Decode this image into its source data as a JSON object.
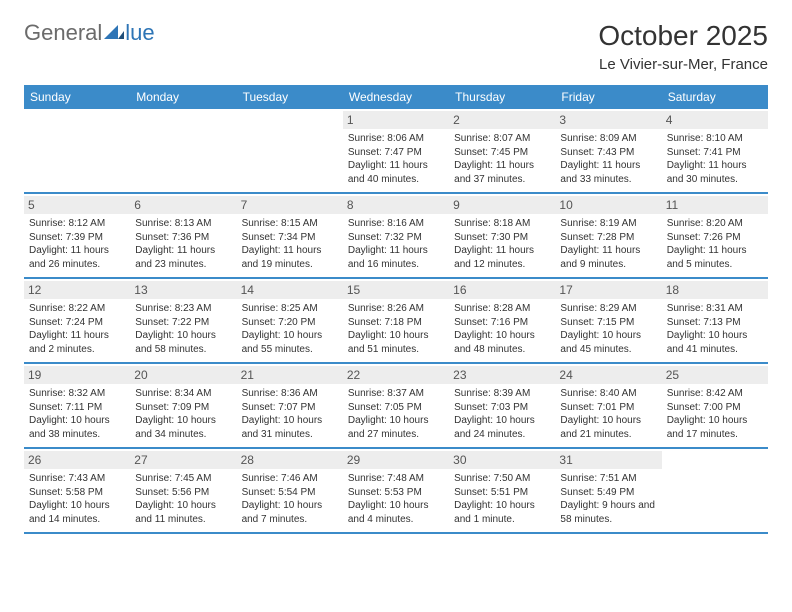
{
  "logo": {
    "text_left": "General",
    "text_right": "lue"
  },
  "title": "October 2025",
  "location": "Le Vivier-sur-Mer, France",
  "colors": {
    "header_bg": "#3b8bc9",
    "header_text": "#ffffff",
    "daynum_bg": "#ededed",
    "border": "#3b8bc9",
    "logo_gray": "#6b6b6b",
    "logo_blue": "#2e75b6"
  },
  "day_names": [
    "Sunday",
    "Monday",
    "Tuesday",
    "Wednesday",
    "Thursday",
    "Friday",
    "Saturday"
  ],
  "weeks": [
    [
      {
        "n": "",
        "sr": "",
        "ss": "",
        "dl": ""
      },
      {
        "n": "",
        "sr": "",
        "ss": "",
        "dl": ""
      },
      {
        "n": "",
        "sr": "",
        "ss": "",
        "dl": ""
      },
      {
        "n": "1",
        "sr": "Sunrise: 8:06 AM",
        "ss": "Sunset: 7:47 PM",
        "dl": "Daylight: 11 hours and 40 minutes."
      },
      {
        "n": "2",
        "sr": "Sunrise: 8:07 AM",
        "ss": "Sunset: 7:45 PM",
        "dl": "Daylight: 11 hours and 37 minutes."
      },
      {
        "n": "3",
        "sr": "Sunrise: 8:09 AM",
        "ss": "Sunset: 7:43 PM",
        "dl": "Daylight: 11 hours and 33 minutes."
      },
      {
        "n": "4",
        "sr": "Sunrise: 8:10 AM",
        "ss": "Sunset: 7:41 PM",
        "dl": "Daylight: 11 hours and 30 minutes."
      }
    ],
    [
      {
        "n": "5",
        "sr": "Sunrise: 8:12 AM",
        "ss": "Sunset: 7:39 PM",
        "dl": "Daylight: 11 hours and 26 minutes."
      },
      {
        "n": "6",
        "sr": "Sunrise: 8:13 AM",
        "ss": "Sunset: 7:36 PM",
        "dl": "Daylight: 11 hours and 23 minutes."
      },
      {
        "n": "7",
        "sr": "Sunrise: 8:15 AM",
        "ss": "Sunset: 7:34 PM",
        "dl": "Daylight: 11 hours and 19 minutes."
      },
      {
        "n": "8",
        "sr": "Sunrise: 8:16 AM",
        "ss": "Sunset: 7:32 PM",
        "dl": "Daylight: 11 hours and 16 minutes."
      },
      {
        "n": "9",
        "sr": "Sunrise: 8:18 AM",
        "ss": "Sunset: 7:30 PM",
        "dl": "Daylight: 11 hours and 12 minutes."
      },
      {
        "n": "10",
        "sr": "Sunrise: 8:19 AM",
        "ss": "Sunset: 7:28 PM",
        "dl": "Daylight: 11 hours and 9 minutes."
      },
      {
        "n": "11",
        "sr": "Sunrise: 8:20 AM",
        "ss": "Sunset: 7:26 PM",
        "dl": "Daylight: 11 hours and 5 minutes."
      }
    ],
    [
      {
        "n": "12",
        "sr": "Sunrise: 8:22 AM",
        "ss": "Sunset: 7:24 PM",
        "dl": "Daylight: 11 hours and 2 minutes."
      },
      {
        "n": "13",
        "sr": "Sunrise: 8:23 AM",
        "ss": "Sunset: 7:22 PM",
        "dl": "Daylight: 10 hours and 58 minutes."
      },
      {
        "n": "14",
        "sr": "Sunrise: 8:25 AM",
        "ss": "Sunset: 7:20 PM",
        "dl": "Daylight: 10 hours and 55 minutes."
      },
      {
        "n": "15",
        "sr": "Sunrise: 8:26 AM",
        "ss": "Sunset: 7:18 PM",
        "dl": "Daylight: 10 hours and 51 minutes."
      },
      {
        "n": "16",
        "sr": "Sunrise: 8:28 AM",
        "ss": "Sunset: 7:16 PM",
        "dl": "Daylight: 10 hours and 48 minutes."
      },
      {
        "n": "17",
        "sr": "Sunrise: 8:29 AM",
        "ss": "Sunset: 7:15 PM",
        "dl": "Daylight: 10 hours and 45 minutes."
      },
      {
        "n": "18",
        "sr": "Sunrise: 8:31 AM",
        "ss": "Sunset: 7:13 PM",
        "dl": "Daylight: 10 hours and 41 minutes."
      }
    ],
    [
      {
        "n": "19",
        "sr": "Sunrise: 8:32 AM",
        "ss": "Sunset: 7:11 PM",
        "dl": "Daylight: 10 hours and 38 minutes."
      },
      {
        "n": "20",
        "sr": "Sunrise: 8:34 AM",
        "ss": "Sunset: 7:09 PM",
        "dl": "Daylight: 10 hours and 34 minutes."
      },
      {
        "n": "21",
        "sr": "Sunrise: 8:36 AM",
        "ss": "Sunset: 7:07 PM",
        "dl": "Daylight: 10 hours and 31 minutes."
      },
      {
        "n": "22",
        "sr": "Sunrise: 8:37 AM",
        "ss": "Sunset: 7:05 PM",
        "dl": "Daylight: 10 hours and 27 minutes."
      },
      {
        "n": "23",
        "sr": "Sunrise: 8:39 AM",
        "ss": "Sunset: 7:03 PM",
        "dl": "Daylight: 10 hours and 24 minutes."
      },
      {
        "n": "24",
        "sr": "Sunrise: 8:40 AM",
        "ss": "Sunset: 7:01 PM",
        "dl": "Daylight: 10 hours and 21 minutes."
      },
      {
        "n": "25",
        "sr": "Sunrise: 8:42 AM",
        "ss": "Sunset: 7:00 PM",
        "dl": "Daylight: 10 hours and 17 minutes."
      }
    ],
    [
      {
        "n": "26",
        "sr": "Sunrise: 7:43 AM",
        "ss": "Sunset: 5:58 PM",
        "dl": "Daylight: 10 hours and 14 minutes."
      },
      {
        "n": "27",
        "sr": "Sunrise: 7:45 AM",
        "ss": "Sunset: 5:56 PM",
        "dl": "Daylight: 10 hours and 11 minutes."
      },
      {
        "n": "28",
        "sr": "Sunrise: 7:46 AM",
        "ss": "Sunset: 5:54 PM",
        "dl": "Daylight: 10 hours and 7 minutes."
      },
      {
        "n": "29",
        "sr": "Sunrise: 7:48 AM",
        "ss": "Sunset: 5:53 PM",
        "dl": "Daylight: 10 hours and 4 minutes."
      },
      {
        "n": "30",
        "sr": "Sunrise: 7:50 AM",
        "ss": "Sunset: 5:51 PM",
        "dl": "Daylight: 10 hours and 1 minute."
      },
      {
        "n": "31",
        "sr": "Sunrise: 7:51 AM",
        "ss": "Sunset: 5:49 PM",
        "dl": "Daylight: 9 hours and 58 minutes."
      },
      {
        "n": "",
        "sr": "",
        "ss": "",
        "dl": ""
      }
    ]
  ]
}
